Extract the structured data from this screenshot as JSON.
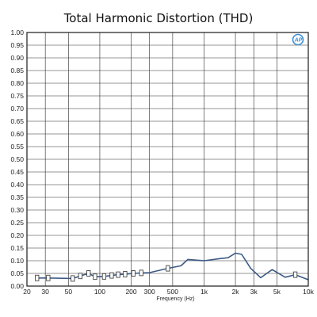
{
  "chart_data": {
    "type": "line",
    "title": "Total Harmonic Distortion (THD)",
    "xlabel": "Frequency (Hz)",
    "ylabel": "",
    "x_scale": "log",
    "xlim": [
      20,
      10000
    ],
    "ylim": [
      0,
      1.0
    ],
    "grid": true,
    "x_ticks": [
      20,
      30,
      50,
      100,
      200,
      300,
      500,
      1000,
      2000,
      3000,
      5000,
      10000
    ],
    "x_tick_labels": [
      "20",
      "30",
      "50",
      "100",
      "200",
      "300",
      "500",
      "1k",
      "2k",
      "3k",
      "5k",
      "10k"
    ],
    "y_ticks": [
      0,
      0.05,
      0.1,
      0.15,
      0.2,
      0.25,
      0.3,
      0.35,
      0.4,
      0.45,
      0.5,
      0.55,
      0.6,
      0.65,
      0.7,
      0.75,
      0.8,
      0.85,
      0.9,
      0.95,
      1.0
    ],
    "y_tick_labels": [
      "0.00",
      "0.05",
      "0.10",
      "0.15",
      "0.20",
      "0.25",
      "0.30",
      "0.35",
      "0.40",
      "0.45",
      "0.50",
      "0.55",
      "0.60",
      "0.65",
      "0.70",
      "0.75",
      "0.80",
      "0.85",
      "0.90",
      "0.95",
      "1.00"
    ],
    "series": [
      {
        "name": "",
        "color": "#3c5a87",
        "x": [
          25,
          32,
          55,
          65,
          78,
          90,
          110,
          130,
          150,
          175,
          210,
          250,
          300,
          450,
          600,
          700,
          1000,
          1400,
          1700,
          2000,
          2300,
          2800,
          3500,
          4500,
          6000,
          7500,
          10000
        ],
        "y": [
          0.032,
          0.032,
          0.03,
          0.04,
          0.05,
          0.037,
          0.038,
          0.042,
          0.045,
          0.047,
          0.05,
          0.052,
          0.053,
          0.07,
          0.08,
          0.105,
          0.1,
          0.108,
          0.112,
          0.13,
          0.125,
          0.07,
          0.033,
          0.065,
          0.035,
          0.045,
          0.025
        ],
        "markers_x": [
          25,
          32,
          55,
          65,
          78,
          90,
          110,
          130,
          150,
          175,
          210,
          250,
          450,
          7500
        ]
      }
    ]
  },
  "logo": {
    "text": "AP",
    "color": "#3f8fd6"
  }
}
